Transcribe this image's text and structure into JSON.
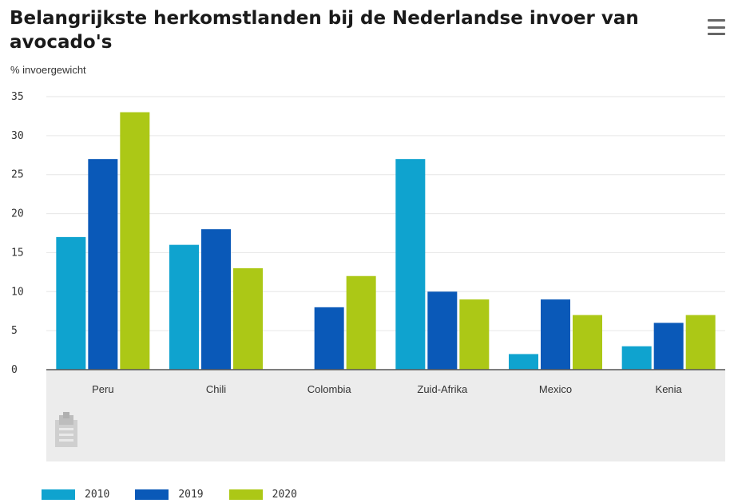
{
  "menu": {
    "icon": "hamburger-menu-icon"
  },
  "export": {
    "icon": "export-icon"
  },
  "colors": {
    "2010": "#0fa3cf",
    "2019": "#0a59b8",
    "2020": "#acc816",
    "grid": "#e6e6e6",
    "band": "#ececec",
    "baseline": "#555555"
  },
  "chart_data": {
    "type": "bar",
    "title": "Belangrijkste herkomstlanden bij de Nederlandse invoer van avocado's",
    "subtitle": "% invoergewicht",
    "categories": [
      "Peru",
      "Chili",
      "Colombia",
      "Zuid-Afrika",
      "Mexico",
      "Kenia"
    ],
    "series": [
      {
        "name": "2010",
        "values": [
          17,
          16,
          0,
          27,
          2,
          3
        ]
      },
      {
        "name": "2019",
        "values": [
          27,
          18,
          8,
          10,
          9,
          6
        ]
      },
      {
        "name": "2020",
        "values": [
          33,
          13,
          12,
          9,
          7,
          7
        ]
      }
    ],
    "ylim": [
      0,
      35
    ],
    "yticks": [
      "0",
      "5",
      "10",
      "15",
      "20",
      "25",
      "30",
      "35"
    ],
    "grid": true,
    "legend": "bottom-left"
  }
}
